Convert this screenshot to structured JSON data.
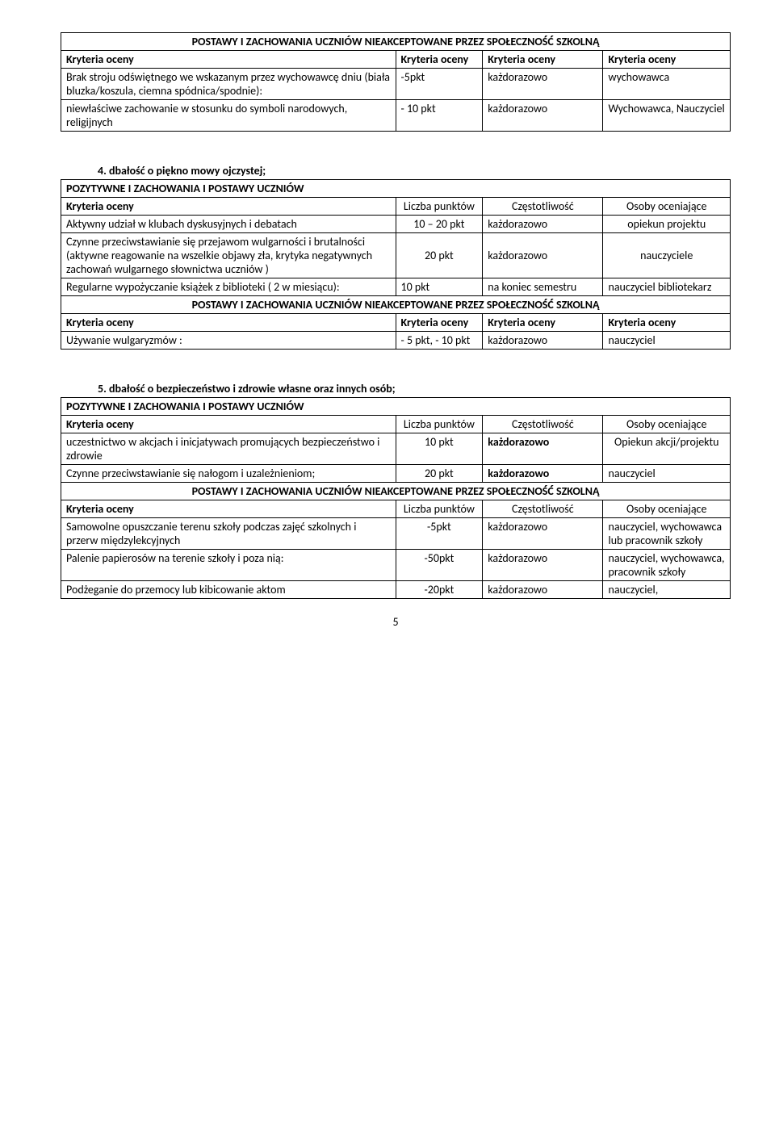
{
  "table1": {
    "title": "POSTAWY I ZACHOWANIA UCZNIÓW NIEAKCEPTOWANE PRZEZ SPOŁECZNOŚĆ SZKOLNĄ",
    "h1": "Kryteria oceny",
    "h2": "Kryteria oceny",
    "h3": "Kryteria oceny",
    "h4": "Kryteria oceny",
    "r1c1": "Brak stroju odświętnego we wskazanym przez wychowawcę dniu (biała bluzka/koszula, ciemna spódnica/spodnie):",
    "r1c2": "-5pkt",
    "r1c3": "każdorazowo",
    "r1c4": "wychowawca",
    "r2c1": "niewłaściwe zachowanie w stosunku do symboli narodowych, religijnych",
    "r2c2": "- 10 pkt",
    "r2c3": "każdorazowo",
    "r2c4": "Wychowawca, Nauczyciel"
  },
  "section4": {
    "heading": "4.    dbałość o piękno mowy ojczystej;",
    "pos": {
      "title": "POZYTYWNE  I ZACHOWANIA I POSTAWY UCZNIÓW",
      "h1": "Kryteria oceny",
      "h2": "Liczba punktów",
      "h3": "Częstotliwość",
      "h4": "Osoby oceniające",
      "r1c1": "Aktywny udział w klubach dyskusyjnych i debatach",
      "r1c2": "10 – 20 pkt",
      "r1c3": "każdorazowo",
      "r1c4": "opiekun projektu",
      "r2c1": "Czynne przeciwstawianie się przejawom wulgarności i brutalności (aktywne reagowanie na wszelkie objawy zła, krytyka negatywnych zachowań wulgarnego słownictwa uczniów )",
      "r2c2": "20 pkt",
      "r2c3": "każdorazowo",
      "r2c4": "nauczyciele",
      "r3c1": "Regularne wypożyczanie książek z biblioteki ( 2 w miesiącu):",
      "r3c2": "10 pkt",
      "r3c3": "na koniec semestru",
      "r3c4": "nauczyciel bibliotekarz"
    },
    "neg": {
      "title": "POSTAWY I ZACHOWANIA UCZNIÓW NIEAKCEPTOWANE PRZEZ SPOŁECZNOŚĆ SZKOLNĄ",
      "h1": "Kryteria oceny",
      "h2": "Kryteria oceny",
      "h3": "Kryteria oceny",
      "h4": "Kryteria oceny",
      "r1c1": "Używanie wulgaryzmów :",
      "r1c2": "- 5 pkt, - 10 pkt",
      "r1c3": "każdorazowo",
      "r1c4": "nauczyciel"
    }
  },
  "section5": {
    "heading": "5.    dbałość o bezpieczeństwo i zdrowie własne oraz innych osób;",
    "pos": {
      "title": "POZYTYWNE  I ZACHOWANIA I POSTAWY UCZNIÓW",
      "h1": "Kryteria oceny",
      "h2": "Liczba punktów",
      "h3": "Częstotliwość",
      "h4": "Osoby oceniające",
      "r1c1": "uczestnictwo w akcjach  i inicjatywach promujących bezpieczeństwo i zdrowie",
      "r1c2": "10 pkt",
      "r1c3": "każdorazowo",
      "r1c4": "Opiekun akcji/projektu",
      "r2c1": "Czynne przeciwstawianie się nałogom i uzależnieniom;",
      "r2c2": "20 pkt",
      "r2c3": "każdorazowo",
      "r2c4": "nauczyciel"
    },
    "neg": {
      "title": "POSTAWY I ZACHOWANIA UCZNIÓW NIEAKCEPTOWANE PRZEZ SPOŁECZNOŚĆ SZKOLNĄ",
      "h1": "Kryteria oceny",
      "h2": "Liczba punktów",
      "h3": "Częstotliwość",
      "h4": "Osoby oceniające",
      "r1c1": "Samowolne opuszczanie terenu szkoły podczas zajęć szkolnych i przerw międzylekcyjnych",
      "r1c2": "-5pkt",
      "r1c3": "każdorazowo",
      "r1c4": "nauczyciel, wychowawca lub pracownik szkoły",
      "r2c1": "Palenie papierosów na terenie szkoły i poza nią:",
      "r2c2": "-50pkt",
      "r2c3": "każdorazowo",
      "r2c4": "nauczyciel, wychowawca, pracownik szkoły",
      "r3c1": "Podżeganie do przemocy lub kibicowanie aktom",
      "r3c2": "-20pkt",
      "r3c3": "każdorazowo",
      "r3c4": "nauczyciel,"
    }
  },
  "page_num": "5"
}
